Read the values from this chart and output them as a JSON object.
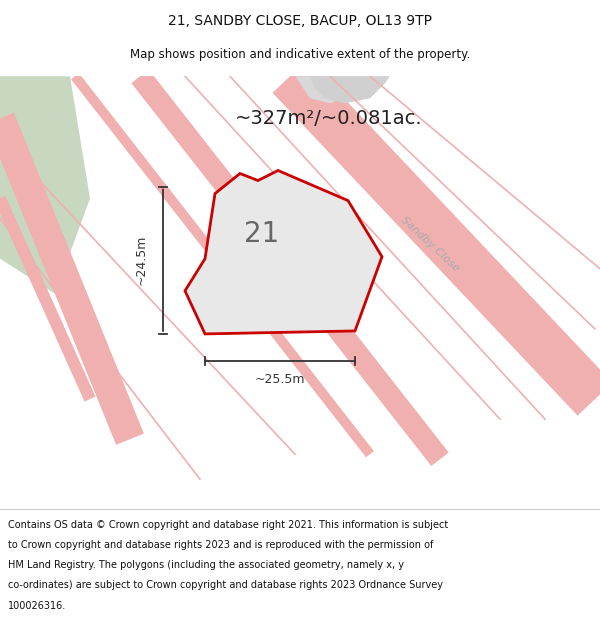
{
  "title_line1": "21, SANDBY CLOSE, BACUP, OL13 9TP",
  "title_line2": "Map shows position and indicative extent of the property.",
  "area_text": "~327m²/~0.081ac.",
  "label_number": "21",
  "dim_vertical": "~24.5m",
  "dim_horizontal": "~25.5m",
  "road_label": "Sandby Close",
  "footer_lines": [
    "Contains OS data © Crown copyright and database right 2021. This information is subject",
    "to Crown copyright and database rights 2023 and is reproduced with the permission of",
    "HM Land Registry. The polygons (including the associated geometry, namely x, y",
    "co-ordinates) are subject to Crown copyright and database rights 2023 Ordnance Survey",
    "100026316."
  ],
  "map_bg": "#ffffff",
  "property_fill": "#e8e8e8",
  "property_edge": "#cc0000",
  "road_line_color": "#f0b0b0",
  "road_border_color": "#e89090",
  "green_color": "#c8d8c0",
  "plot_line_color": "#f0b0b0",
  "gray_block_color": "#d8d8d8",
  "title_fontsize": 10,
  "subtitle_fontsize": 8.5,
  "area_fontsize": 14,
  "label_fontsize": 20,
  "dim_fontsize": 9,
  "road_label_fontsize": 8,
  "footer_fontsize": 7
}
